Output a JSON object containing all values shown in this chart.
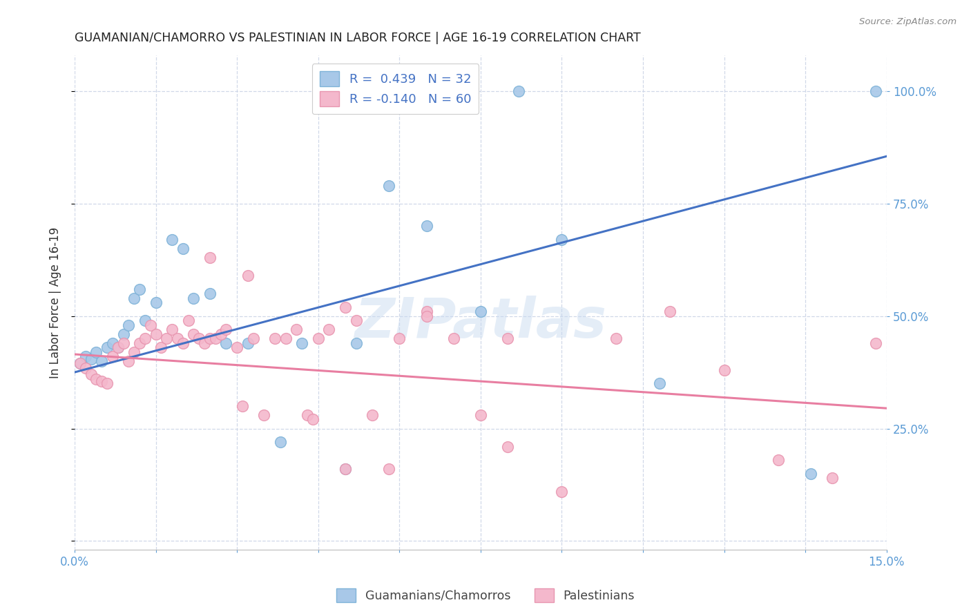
{
  "title": "GUAMANIAN/CHAMORRO VS PALESTINIAN IN LABOR FORCE | AGE 16-19 CORRELATION CHART",
  "source": "Source: ZipAtlas.com",
  "ylabel_left": "In Labor Force | Age 16-19",
  "xlim": [
    0.0,
    0.15
  ],
  "ylim": [
    -0.02,
    1.08
  ],
  "blue_scatter_x": [
    0.001,
    0.002,
    0.003,
    0.004,
    0.005,
    0.006,
    0.007,
    0.008,
    0.009,
    0.01,
    0.011,
    0.012,
    0.013,
    0.015,
    0.018,
    0.02,
    0.022,
    0.025,
    0.028,
    0.032,
    0.038,
    0.042,
    0.05,
    0.052,
    0.058,
    0.065,
    0.075,
    0.082,
    0.09,
    0.108,
    0.136,
    0.148
  ],
  "blue_scatter_y": [
    0.395,
    0.41,
    0.405,
    0.42,
    0.4,
    0.43,
    0.44,
    0.43,
    0.46,
    0.48,
    0.54,
    0.56,
    0.49,
    0.53,
    0.67,
    0.65,
    0.54,
    0.55,
    0.44,
    0.44,
    0.22,
    0.44,
    0.16,
    0.44,
    0.79,
    0.7,
    0.51,
    1.0,
    0.67,
    0.35,
    0.15,
    1.0
  ],
  "pink_scatter_x": [
    0.001,
    0.002,
    0.003,
    0.004,
    0.005,
    0.006,
    0.007,
    0.008,
    0.009,
    0.01,
    0.011,
    0.012,
    0.013,
    0.014,
    0.015,
    0.016,
    0.017,
    0.018,
    0.019,
    0.02,
    0.021,
    0.022,
    0.023,
    0.024,
    0.025,
    0.026,
    0.027,
    0.028,
    0.03,
    0.031,
    0.033,
    0.035,
    0.037,
    0.039,
    0.041,
    0.043,
    0.045,
    0.047,
    0.05,
    0.052,
    0.055,
    0.058,
    0.06,
    0.065,
    0.07,
    0.075,
    0.08,
    0.09,
    0.1,
    0.11,
    0.12,
    0.13,
    0.14,
    0.148,
    0.025,
    0.032,
    0.044,
    0.05,
    0.065,
    0.08
  ],
  "pink_scatter_y": [
    0.395,
    0.385,
    0.37,
    0.36,
    0.355,
    0.35,
    0.41,
    0.43,
    0.44,
    0.4,
    0.42,
    0.44,
    0.45,
    0.48,
    0.46,
    0.43,
    0.45,
    0.47,
    0.45,
    0.44,
    0.49,
    0.46,
    0.45,
    0.44,
    0.45,
    0.45,
    0.46,
    0.47,
    0.43,
    0.3,
    0.45,
    0.28,
    0.45,
    0.45,
    0.47,
    0.28,
    0.45,
    0.47,
    0.52,
    0.49,
    0.28,
    0.16,
    0.45,
    0.51,
    0.45,
    0.28,
    0.21,
    0.11,
    0.45,
    0.51,
    0.38,
    0.18,
    0.14,
    0.44,
    0.63,
    0.59,
    0.27,
    0.16,
    0.5,
    0.45
  ],
  "blue_line_x": [
    0.0,
    0.15
  ],
  "blue_line_y": [
    0.375,
    0.855
  ],
  "pink_line_x": [
    0.0,
    0.15
  ],
  "pink_line_y": [
    0.415,
    0.295
  ],
  "blue_marker_color": "#a8c8e8",
  "blue_edge_color": "#7fb3d8",
  "pink_marker_color": "#f4b8cc",
  "pink_edge_color": "#e896b0",
  "blue_line_color": "#4472c4",
  "pink_line_color": "#e87ea1",
  "legend_line1": "R =  0.439   N = 32",
  "legend_line2": "R = -0.140   N = 60",
  "watermark_text": "ZIPatlas",
  "background_color": "#ffffff",
  "grid_color": "#d0d8e8",
  "grid_style": "--"
}
